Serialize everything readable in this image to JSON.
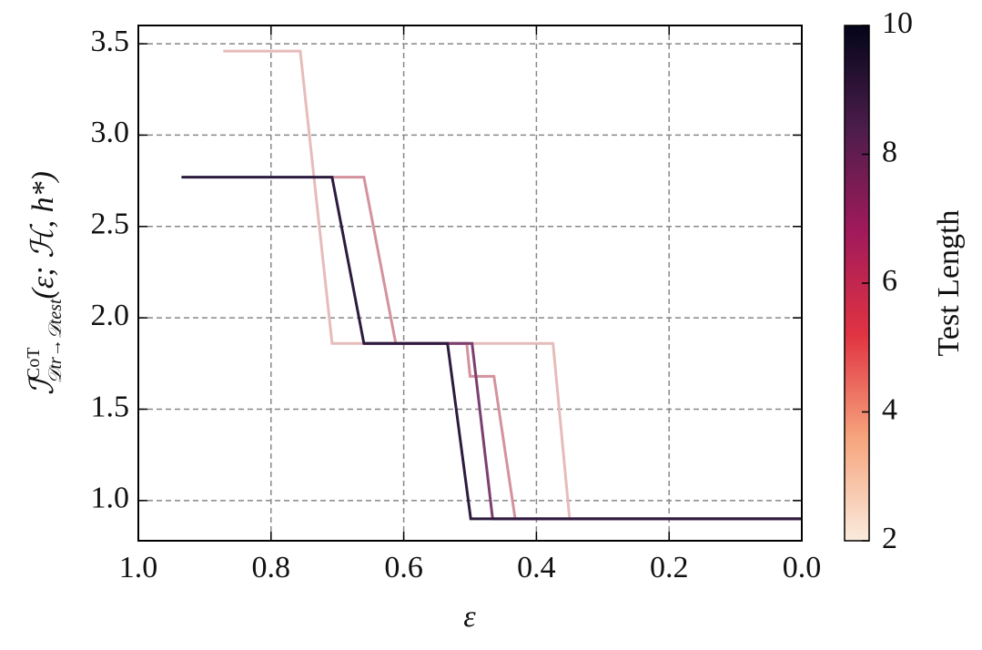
{
  "chart_data": {
    "type": "line",
    "xlabel": "ε",
    "ylabel": {
      "main": "ℐ",
      "sup": "CoT",
      "sub": "𝒟tr→𝒟test",
      "arg": "(ε; ℋ, h*)"
    },
    "xlim": [
      1.0,
      0.0
    ],
    "ylim": [
      0.78,
      3.6
    ],
    "xticks": [
      {
        "value": 1.0,
        "label": "1.0"
      },
      0.8,
      0.6,
      0.4,
      0.2,
      {
        "value": 0.0,
        "label": "0.0"
      }
    ],
    "yticks": [
      {
        "value": 1.0,
        "label": "1.0"
      },
      1.5,
      {
        "value": 2.0,
        "label": "2.0"
      },
      2.5,
      {
        "value": 3.0,
        "label": "3.0"
      },
      3.5
    ],
    "grid": true,
    "series": [
      {
        "color": "#e6bcbb",
        "x": [
          0.872,
          0.756,
          0.708,
          0.375,
          0.35,
          0.0
        ],
        "values": [
          3.46,
          3.46,
          1.86,
          1.86,
          0.9,
          0.9
        ]
      },
      {
        "color": "#d4929e",
        "x": [
          0.708,
          0.66,
          0.612,
          0.505,
          0.5,
          0.464,
          0.432,
          0.0
        ],
        "values": [
          2.77,
          2.77,
          1.86,
          1.86,
          1.68,
          1.68,
          0.9,
          0.9
        ]
      },
      {
        "color": "#7b3f70",
        "x": [
          0.66,
          0.497,
          0.466,
          0.0
        ],
        "values": [
          1.86,
          1.86,
          0.9,
          0.9
        ]
      },
      {
        "color": "#2d1b3f",
        "x": [
          0.935,
          0.708,
          0.66,
          0.534,
          0.499,
          0.0
        ],
        "values": [
          2.77,
          2.77,
          1.86,
          1.86,
          0.9,
          0.9
        ]
      }
    ],
    "colorbar": {
      "label": "Test Length",
      "lim": [
        2,
        10
      ],
      "ticks": [
        2,
        4,
        6,
        8,
        10
      ],
      "colors": [
        "#faebdd",
        "#f6a47c",
        "#e13342",
        "#a11a5b",
        "#4c1d4b",
        "#03051a"
      ]
    }
  }
}
